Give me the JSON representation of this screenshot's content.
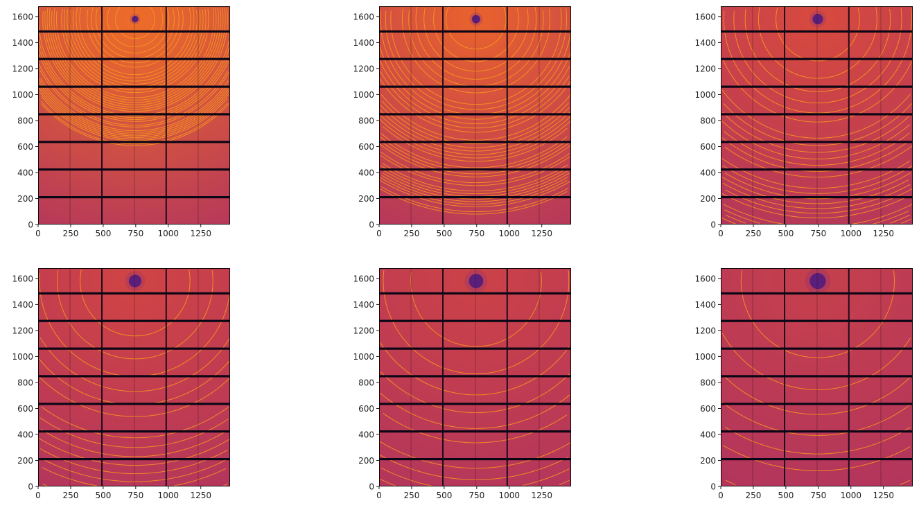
{
  "chart_data": [
    {
      "type": "heatmap",
      "panel": 1,
      "xlim": [
        0,
        1475
      ],
      "ylim": [
        0,
        1679
      ],
      "xticks": [
        "0",
        "250",
        "500",
        "750",
        "1000",
        "1250"
      ],
      "yticks": [
        "0",
        "200",
        "400",
        "600",
        "800",
        "1000",
        "1200",
        "1400",
        "1600"
      ],
      "beam_center": [
        745,
        1580
      ],
      "beamstop_radius": 25,
      "first_ring_radius": 150,
      "colors": {
        "center": "#ee6d28",
        "edge": "#b3355d"
      }
    },
    {
      "type": "heatmap",
      "panel": 2,
      "xlim": [
        0,
        1475
      ],
      "ylim": [
        0,
        1679
      ],
      "xticks": [
        "0",
        "250",
        "500",
        "750",
        "1000",
        "1250"
      ],
      "yticks": [
        "0",
        "200",
        "400",
        "600",
        "800",
        "1000",
        "1200",
        "1400",
        "1600"
      ],
      "beam_center": [
        745,
        1580
      ],
      "beamstop_radius": 32,
      "first_ring_radius": 230,
      "colors": {
        "center": "#e9622d",
        "edge": "#b3355d"
      }
    },
    {
      "type": "heatmap",
      "panel": 3,
      "xlim": [
        0,
        1475
      ],
      "ylim": [
        0,
        1679
      ],
      "xticks": [
        "0",
        "250",
        "500",
        "750",
        "1000",
        "1250"
      ],
      "yticks": [
        "0",
        "200",
        "400",
        "600",
        "800",
        "1000",
        "1200",
        "1400",
        "1600"
      ],
      "beam_center": [
        745,
        1580
      ],
      "beamstop_radius": 40,
      "first_ring_radius": 320,
      "colors": {
        "center": "#d84a3e",
        "edge": "#b2355d"
      }
    },
    {
      "type": "heatmap",
      "panel": 4,
      "xlim": [
        0,
        1475
      ],
      "ylim": [
        0,
        1679
      ],
      "xticks": [
        "0",
        "250",
        "500",
        "750",
        "1000",
        "1250"
      ],
      "yticks": [
        "0",
        "200",
        "400",
        "600",
        "800",
        "1000",
        "1200",
        "1400",
        "1600"
      ],
      "beam_center": [
        745,
        1580
      ],
      "beamstop_radius": 48,
      "first_ring_radius": 420,
      "colors": {
        "center": "#d04444",
        "edge": "#b2355d"
      }
    },
    {
      "type": "heatmap",
      "panel": 5,
      "xlim": [
        0,
        1475
      ],
      "ylim": [
        0,
        1679
      ],
      "xticks": [
        "0",
        "250",
        "500",
        "750",
        "1000",
        "1250"
      ],
      "yticks": [
        "0",
        "200",
        "400",
        "600",
        "800",
        "1000",
        "1200",
        "1400",
        "1600"
      ],
      "beam_center": [
        745,
        1580
      ],
      "beamstop_radius": 55,
      "first_ring_radius": 500,
      "colors": {
        "center": "#cc4247",
        "edge": "#b2355d"
      }
    },
    {
      "type": "heatmap",
      "panel": 6,
      "xlim": [
        0,
        1475
      ],
      "ylim": [
        0,
        1679
      ],
      "xticks": [
        "0",
        "250",
        "500",
        "750",
        "1000",
        "1250"
      ],
      "yticks": [
        "0",
        "200",
        "400",
        "600",
        "800",
        "1000",
        "1200",
        "1400",
        "1600"
      ],
      "beam_center": [
        745,
        1580
      ],
      "beamstop_radius": 62,
      "first_ring_radius": 585,
      "colors": {
        "center": "#c6404c",
        "edge": "#b1345e"
      }
    }
  ],
  "colormap": {
    "ring": "#f99b1c",
    "beamstop": "#5a1f7a",
    "gap": "#0b0616",
    "seam": "#2a1020"
  },
  "detector": {
    "horizontal_gaps": [
      210,
      423,
      635,
      848,
      1060,
      1273,
      1485
    ],
    "vertical_gaps": [
      490,
      984
    ],
    "seams": [
      245,
      740,
      1230
    ]
  }
}
